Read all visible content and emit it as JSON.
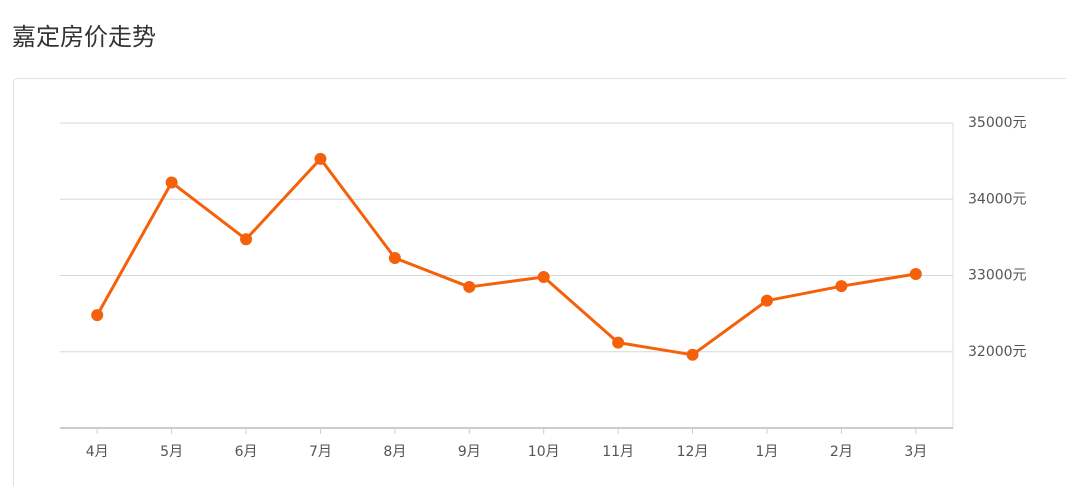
{
  "chart_data": {
    "type": "line",
    "title": "嘉定房价走势",
    "categories": [
      "4月",
      "5月",
      "6月",
      "7月",
      "8月",
      "9月",
      "10月",
      "11月",
      "12月",
      "1月",
      "2月",
      "3月"
    ],
    "series": [
      {
        "name": "嘉定",
        "color": "#f5600a",
        "values": [
          32480,
          34220,
          33475,
          34530,
          33230,
          32850,
          32980,
          32120,
          31960,
          32670,
          32860,
          33020
        ]
      }
    ],
    "ylim": [
      31000,
      35000
    ],
    "yticks": [
      {
        "value": 32000,
        "label": "32000元"
      },
      {
        "value": 33000,
        "label": "33000元"
      },
      {
        "value": 34000,
        "label": "34000元"
      },
      {
        "value": 35000,
        "label": "35000元"
      }
    ],
    "grid": true
  }
}
